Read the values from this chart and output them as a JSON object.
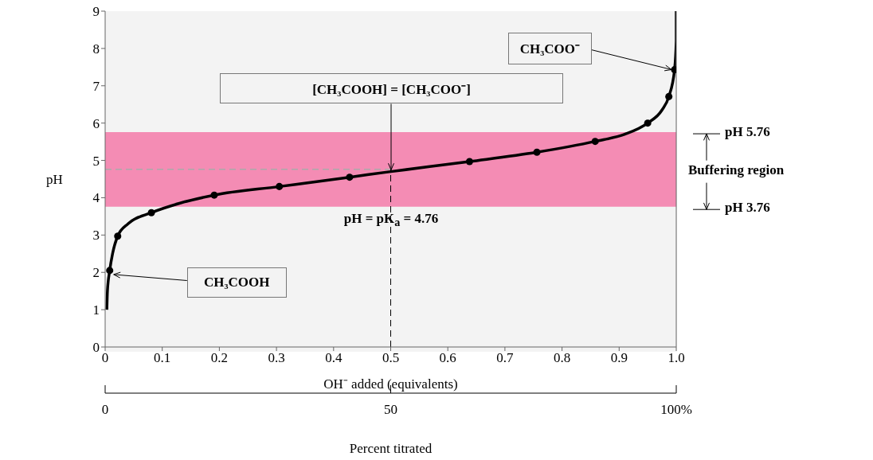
{
  "chart_data": {
    "type": "line",
    "xlabel": "OH⁻ added (equivalents)",
    "ylabel": "pH",
    "xlim": [
      0,
      1.0
    ],
    "xticks": [
      0,
      0.1,
      0.2,
      0.3,
      0.4,
      0.5,
      0.6,
      0.7,
      0.8,
      0.9,
      {
        "value": 1.0,
        "label": "1.0"
      }
    ],
    "ylim": [
      0,
      9
    ],
    "yticks": [
      0,
      1,
      2,
      3,
      4,
      5,
      6,
      7,
      8,
      9
    ],
    "x2lim": [
      0,
      100
    ],
    "x2ticks": [
      0,
      50,
      {
        "value": 100,
        "label": "100%"
      }
    ],
    "x2label": "Percent titrated",
    "series": [
      {
        "color": "#000000",
        "x": [
          0.003,
          0.004,
          0.008,
          0.013,
          0.022,
          0.04,
          0.081,
          0.13,
          0.191,
          0.305,
          0.428,
          0.5,
          0.638,
          0.756,
          0.858,
          0.91,
          0.95,
          0.975,
          0.987,
          0.997,
          1.0,
          1.0
        ],
        "values": [
          1.0,
          1.5,
          2.05,
          2.5,
          2.97,
          3.3,
          3.6,
          3.85,
          4.07,
          4.3,
          4.55,
          4.7,
          4.97,
          5.22,
          5.51,
          5.7,
          6.0,
          6.35,
          6.71,
          7.43,
          8.2,
          9.0
        ]
      },
      {
        "type": "scatter",
        "color": "#000000",
        "x": [
          0.008,
          0.022,
          0.081,
          0.191,
          0.305,
          0.428,
          0.638,
          0.756,
          0.858,
          0.95,
          0.987,
          0.997
        ],
        "values": [
          2.05,
          2.97,
          3.6,
          4.07,
          4.3,
          4.55,
          4.97,
          5.22,
          5.51,
          6.0,
          6.71,
          7.43
        ]
      }
    ],
    "bands": [
      {
        "axis": "y",
        "from": 3.76,
        "to": 5.76,
        "label": "Buffering region",
        "color": "#f48cb4"
      }
    ],
    "ref_lines": [
      {
        "axis": "y",
        "value": 4.76,
        "color": "#aaaaaa",
        "line_style": "dashed"
      },
      {
        "axis": "x",
        "value": 0.5,
        "color": "#000000",
        "line_style": "dashed"
      }
    ],
    "annotations": [
      {
        "text": "CH₃COO⁻",
        "x": 0.997,
        "y": 7.43
      },
      {
        "text": "[CH₃COOH] = [CH₃COO⁻]",
        "x": 0.5,
        "y": 4.7
      },
      {
        "text": "pH = pK$_{a}$ = 4.76",
        "x": 0.5,
        "y": 4.7
      },
      {
        "text": "CH₃COOH",
        "x": 0.008,
        "y": 2.05
      },
      "pH 5.76",
      "pH 3.76"
    ]
  }
}
